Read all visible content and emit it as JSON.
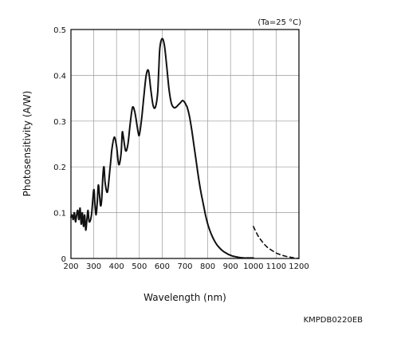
{
  "chart_data": {
    "type": "line",
    "annotation": "(Ta=25 °C)",
    "xlabel": "Wavelength (nm)",
    "ylabel": "Photosensitivity (A/W)",
    "xlim": [
      200,
      1200
    ],
    "ylim": [
      0,
      0.5
    ],
    "x_ticks": [
      200,
      300,
      400,
      500,
      600,
      700,
      800,
      900,
      1000,
      1100,
      1200
    ],
    "y_ticks": [
      0,
      0.1,
      0.2,
      0.3,
      0.4,
      0.5
    ],
    "x_tick_labels": [
      "200",
      "300",
      "400",
      "500",
      "600",
      "700",
      "800",
      "900",
      "1000",
      "1100",
      "1200"
    ],
    "y_tick_labels": [
      "0",
      "0.1",
      "0.2",
      "0.3",
      "0.4",
      "0.5"
    ],
    "grid": true,
    "series": [
      {
        "style": "solid",
        "x": [
          200,
          205,
          210,
          215,
          220,
          225,
          230,
          235,
          240,
          245,
          250,
          255,
          260,
          265,
          270,
          275,
          280,
          290,
          300,
          305,
          310,
          315,
          320,
          325,
          330,
          335,
          340,
          345,
          350,
          360,
          370,
          375,
          380,
          390,
          400,
          410,
          420,
          425,
          430,
          440,
          450,
          460,
          470,
          480,
          490,
          495,
          500,
          510,
          520,
          530,
          540,
          550,
          560,
          570,
          580,
          585,
          590,
          600,
          610,
          620,
          630,
          640,
          650,
          660,
          670,
          680,
          690,
          700,
          705,
          710,
          720,
          730,
          740,
          750,
          760,
          770,
          780,
          790,
          800,
          810,
          820,
          830,
          840,
          850,
          860,
          870,
          880,
          890,
          900,
          910,
          920,
          930,
          940,
          950,
          960,
          970,
          980,
          990,
          1000
        ],
        "y": [
          0.09,
          0.095,
          0.085,
          0.1,
          0.08,
          0.095,
          0.105,
          0.085,
          0.11,
          0.075,
          0.1,
          0.07,
          0.095,
          0.062,
          0.085,
          0.105,
          0.08,
          0.095,
          0.15,
          0.12,
          0.095,
          0.12,
          0.16,
          0.14,
          0.115,
          0.13,
          0.18,
          0.2,
          0.165,
          0.145,
          0.19,
          0.215,
          0.24,
          0.265,
          0.245,
          0.205,
          0.23,
          0.275,
          0.265,
          0.235,
          0.25,
          0.295,
          0.33,
          0.32,
          0.29,
          0.275,
          0.27,
          0.305,
          0.355,
          0.4,
          0.41,
          0.37,
          0.335,
          0.33,
          0.36,
          0.41,
          0.46,
          0.48,
          0.465,
          0.42,
          0.37,
          0.34,
          0.33,
          0.33,
          0.335,
          0.34,
          0.345,
          0.34,
          0.335,
          0.33,
          0.31,
          0.28,
          0.245,
          0.21,
          0.175,
          0.145,
          0.12,
          0.095,
          0.075,
          0.06,
          0.048,
          0.038,
          0.03,
          0.024,
          0.019,
          0.015,
          0.012,
          0.009,
          0.007,
          0.005,
          0.004,
          0.003,
          0.002,
          0.0015,
          0.001,
          0.001,
          0.001,
          0.001,
          0.001
        ]
      },
      {
        "style": "dashed",
        "x": [
          1000,
          1020,
          1040,
          1060,
          1080,
          1100,
          1120,
          1140,
          1160,
          1180,
          1200
        ],
        "y": [
          0.07,
          0.05,
          0.036,
          0.025,
          0.018,
          0.012,
          0.008,
          0.005,
          0.003,
          0.001,
          0.0
        ]
      }
    ]
  },
  "figure_id": "KMPDB0220EB"
}
